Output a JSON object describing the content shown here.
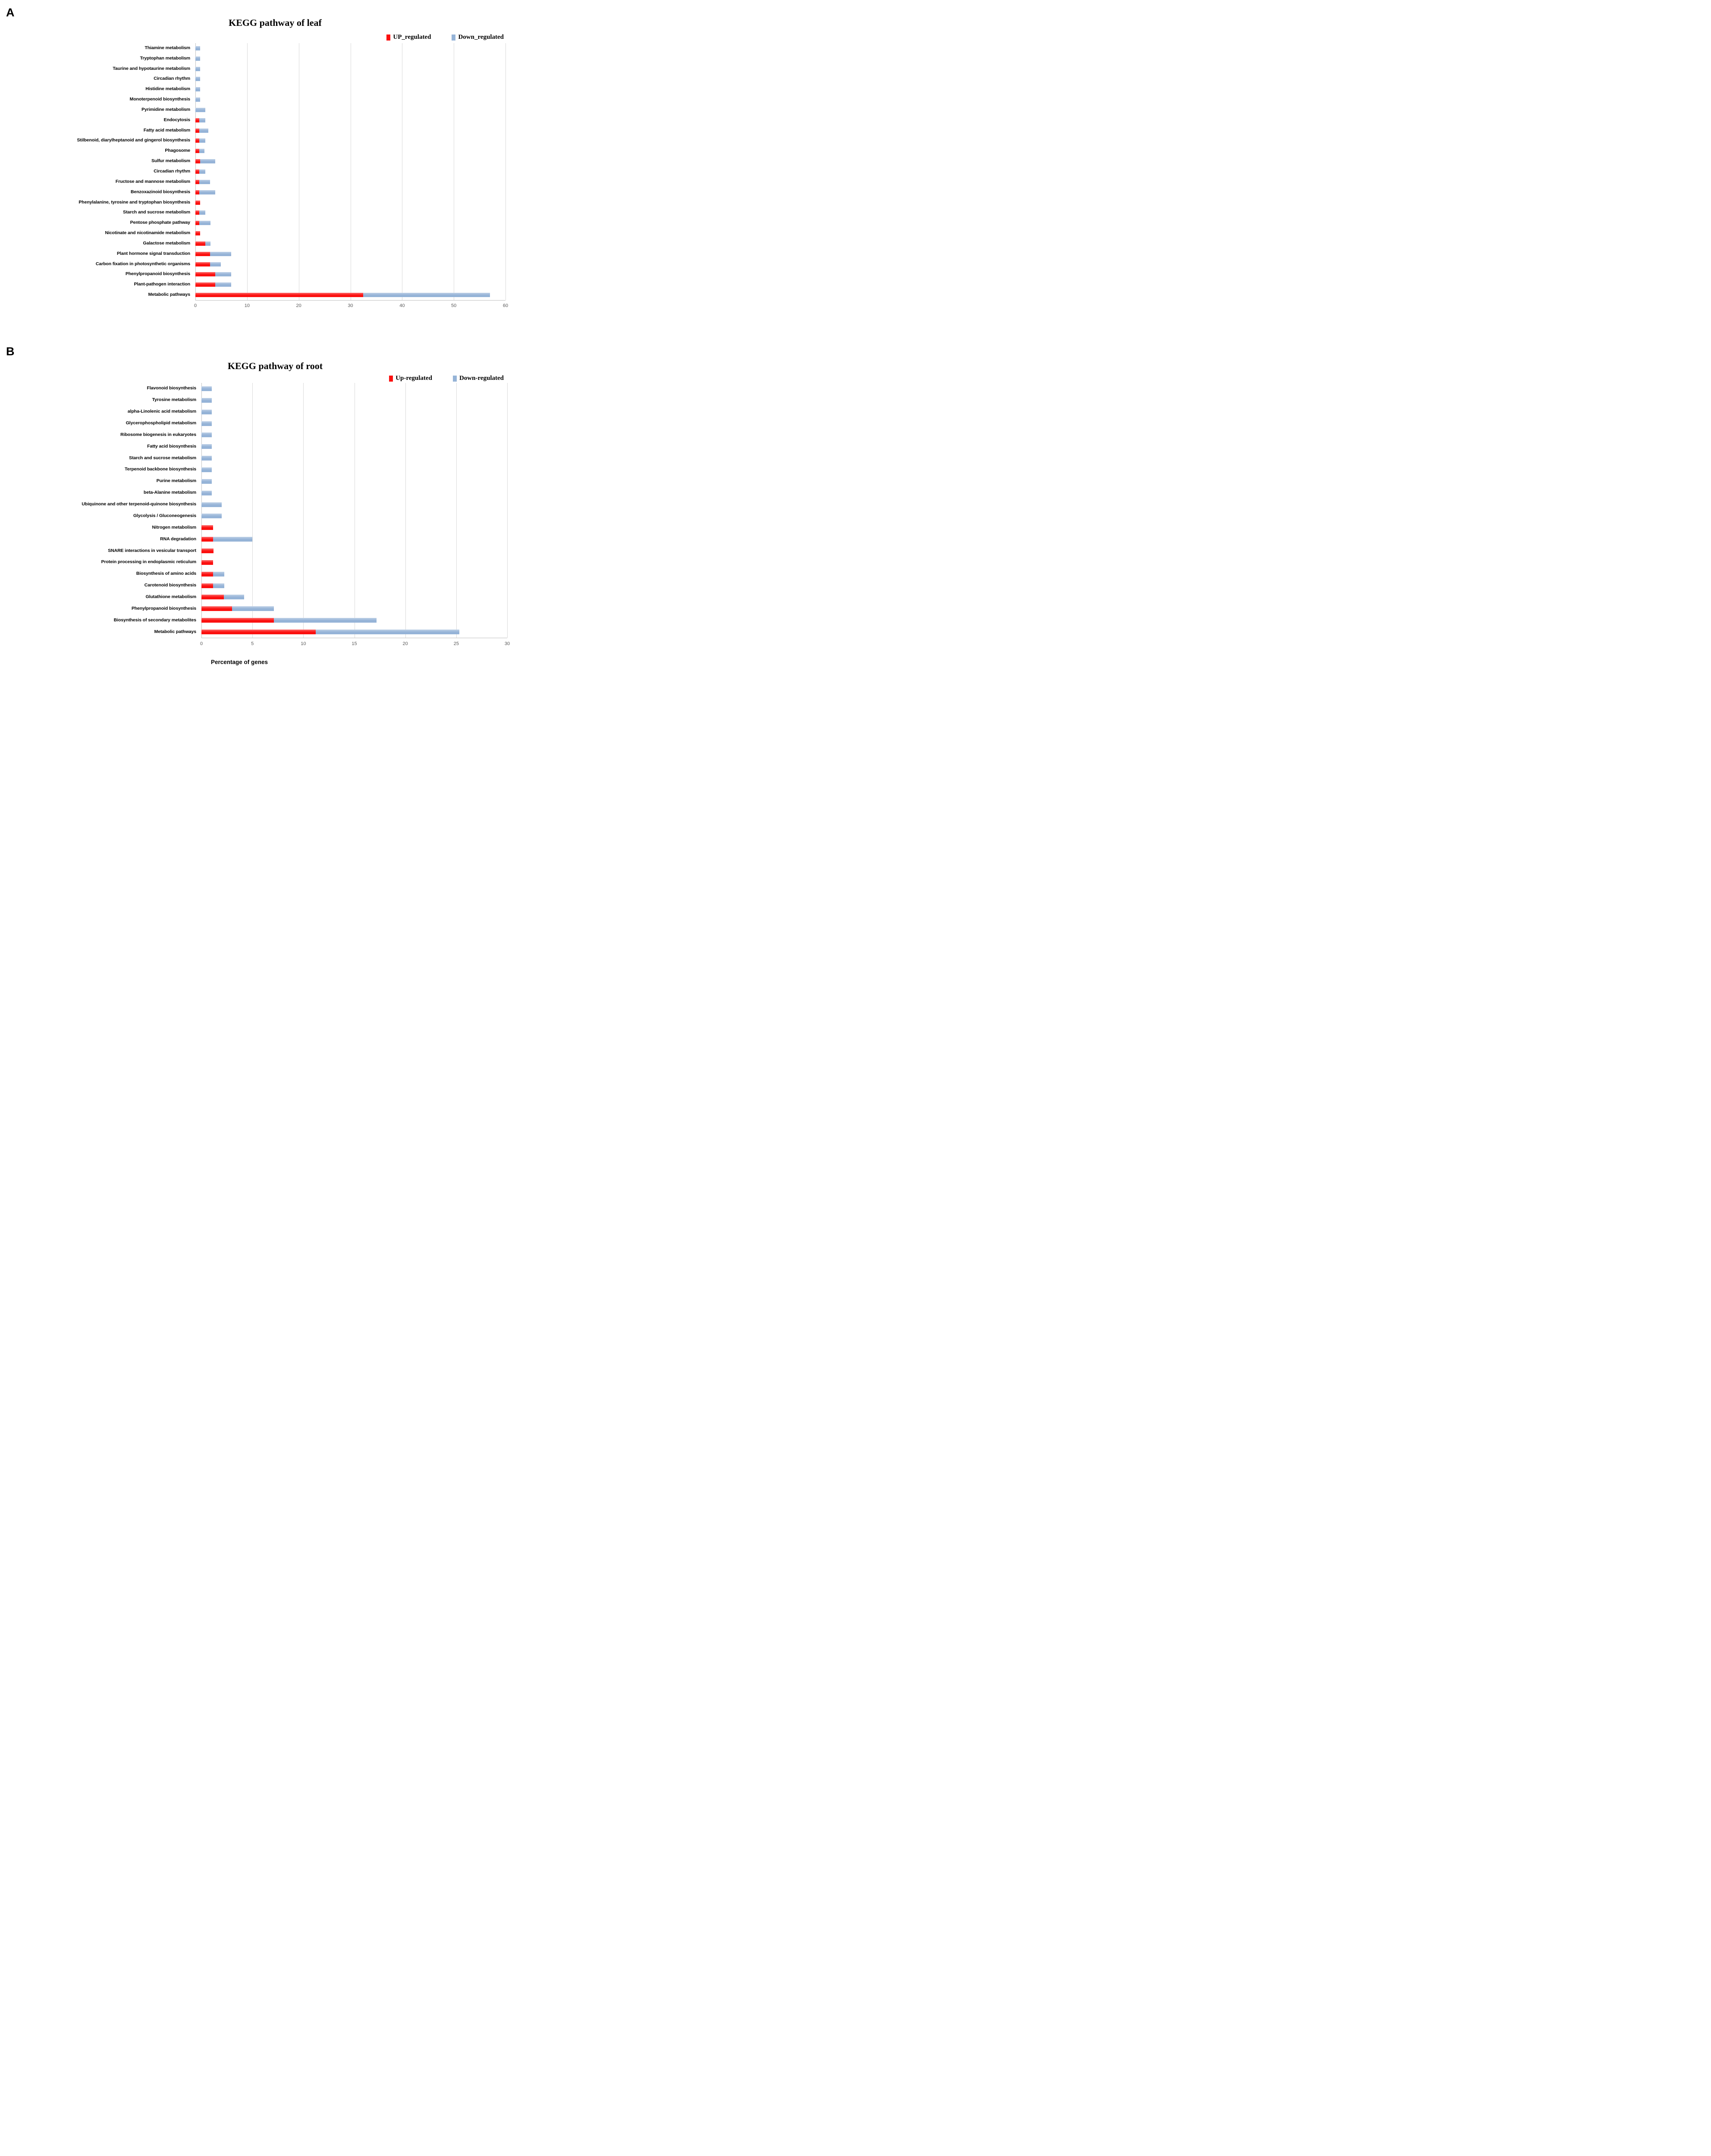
{
  "colors": {
    "up_red": "#fb100f",
    "down_blue": "#95b3d7",
    "grid_gray": "#d9d9d9",
    "axis_gray": "#bfbfbf",
    "tick_text_gray": "#595959"
  },
  "chart_data": [
    {
      "panel_label": "A",
      "type": "bar",
      "orientation": "horizontal",
      "stacked": true,
      "grid": true,
      "legend_position": "top-right",
      "title": "KEGG pathway of leaf",
      "xlabel": "",
      "xlim": [
        0,
        60
      ],
      "xticks": [
        0,
        10,
        20,
        30,
        40,
        50,
        60
      ],
      "categories": [
        "Thiamine metabolism",
        "Tryptophan metabolism",
        "Taurine and hypotaurine metabolism",
        "Circadian rhythm",
        "Histidine metabolism",
        "Monoterpenoid biosynthesis",
        "Pyrimidine metabolism",
        "Endocytosis",
        "Fatty acid metabolism",
        "Stilbenoid, diarylheptanoid and gingerol biosynthesis",
        "Phagosome",
        "Sulfur metabolism",
        "Circadian rhythm",
        "Fructose and mannose metabolism",
        "Benzoxazinoid biosynthesis",
        "Phenylalanine, tyrosine and tryptophan biosynthesis",
        "Starch and sucrose metabolism",
        "Pentose phosphate pathway",
        "Nicotinate and nicotinamide metabolism",
        "Galactose metabolism",
        "Plant hormone signal transduction",
        "Carbon fixation in photosynthetic organisms",
        "Phenylpropanoid biosynthesis",
        "Plant-pathogen interaction",
        "Metabolic pathways"
      ],
      "series": [
        {
          "name": "UP_regulated",
          "values": [
            0,
            0,
            0,
            0,
            0,
            0,
            0,
            0.75,
            0.75,
            0.75,
            0.75,
            0.9,
            0.75,
            0.75,
            0.75,
            0.9,
            0.75,
            0.75,
            0.9,
            1.9,
            2.8,
            2.85,
            3.85,
            3.8,
            32.5
          ]
        },
        {
          "name": "Down_regulated",
          "values": [
            0.9,
            0.9,
            0.9,
            0.9,
            0.9,
            0.9,
            1.9,
            1.15,
            1.75,
            1.15,
            1.0,
            2.95,
            1.15,
            2.1,
            3.1,
            0,
            1.15,
            2.15,
            0,
            1.0,
            4.15,
            2.1,
            3.1,
            3.15,
            24.5
          ]
        }
      ]
    },
    {
      "panel_label": "B",
      "type": "bar",
      "orientation": "horizontal",
      "stacked": true,
      "grid": true,
      "legend_position": "top-right",
      "title": "KEGG pathway of root",
      "xlabel": "Percentage of genes",
      "xlim": [
        0,
        30
      ],
      "xticks": [
        0,
        5,
        10,
        15,
        20,
        25,
        30
      ],
      "categories": [
        "Flavonoid biosynthesis",
        "Tyrosine metabolism",
        "alpha-Linolenic acid metabolism",
        "Glycerophospholipid metabolism",
        "Ribosome biogenesis in eukaryotes",
        "Fatty acid biosynthesis",
        "Starch and sucrose metabolism",
        "Terpenoid backbone biosynthesis",
        "Purine metabolism",
        "beta-Alanine metabolism",
        "Ubiquinone and other terpenoid-quinone biosynthesis",
        "Glycolysis / Gluconeogenesis",
        "Nitrogen metabolism",
        "RNA degradation",
        "SNARE interactions in vesicular transport",
        "Protein processing in endoplasmic reticulum",
        "Biosynthesis of amino acids",
        "Carotenoid biosynthesis",
        "Glutathione metabolism",
        "Phenylpropanoid biosynthesis",
        "Biosynthesis of secondary metabolites",
        "Metabolic pathways"
      ],
      "series": [
        {
          "name": "Up-regulated",
          "values": [
            0,
            0,
            0,
            0,
            0,
            0,
            0,
            0,
            0,
            0,
            0,
            0,
            1.15,
            1.15,
            1.2,
            1.15,
            1.15,
            1.15,
            2.2,
            3.0,
            7.1,
            11.2
          ]
        },
        {
          "name": "Down-regulated",
          "values": [
            1.0,
            1.0,
            1.0,
            1.0,
            1.0,
            1.0,
            1.0,
            1.0,
            1.0,
            1.0,
            2.0,
            2.0,
            0,
            3.85,
            0,
            0,
            1.1,
            1.1,
            2.0,
            4.1,
            10.1,
            14.1
          ]
        }
      ]
    }
  ]
}
